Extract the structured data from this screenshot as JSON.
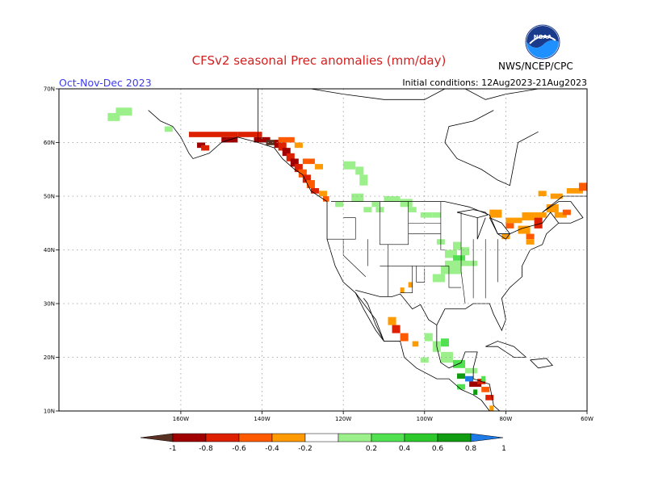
{
  "title": "CFSv2 seasonal Prec anomalies (mm/day)",
  "period": "Oct-Nov-Dec 2023",
  "initial_conditions": "Initial conditions: 12Aug2023-21Aug2023",
  "agency": "NWS/NCEP/CPC",
  "logo_text": "NOAA",
  "map": {
    "lon_range": [
      -190,
      -60
    ],
    "lat_range": [
      10,
      70
    ],
    "lat_labels": [
      "70N",
      "60N",
      "50N",
      "40N",
      "30N",
      "20N",
      "10N"
    ],
    "lon_labels": [
      "160W",
      "140W",
      "120W",
      "100W",
      "80W",
      "60W"
    ]
  },
  "colorbar": {
    "labels": [
      "-1",
      "-0.8",
      "-0.6",
      "-0.4",
      "-0.2",
      "0.2",
      "0.4",
      "0.6",
      "0.8",
      "1"
    ],
    "colors": [
      "#5a3224",
      "#a00000",
      "#dc2000",
      "#ff5a00",
      "#ff9a00",
      "#ffffff",
      "#9cf08c",
      "#50e050",
      "#2cc82c",
      "#109c10",
      "#1e7ae6"
    ]
  },
  "colors": {
    "light_green": "#9cf08c",
    "green": "#50e050",
    "dark_green": "#109c10",
    "blue": "#1e7ae6",
    "orange": "#ff9a00",
    "red_orange": "#ff5a00",
    "red": "#dc2000",
    "dark_red": "#a00000",
    "brown": "#5a3224"
  }
}
